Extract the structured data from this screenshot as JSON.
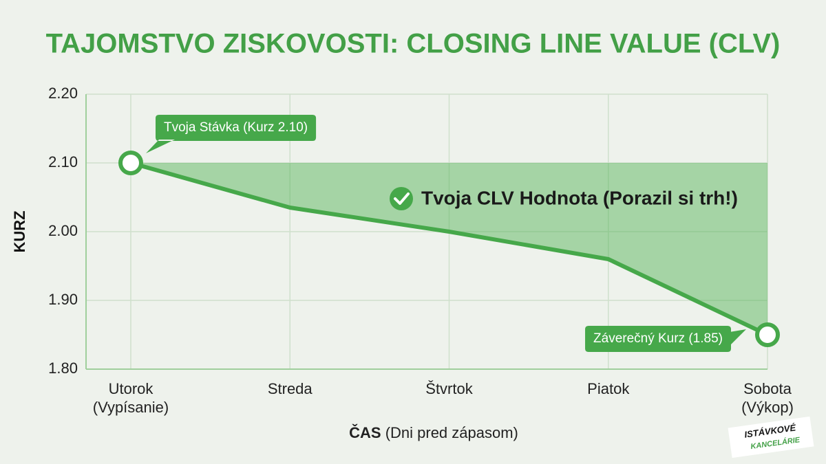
{
  "chart_data": {
    "type": "line",
    "title": "TAJOMSTVO ZISKOVOSTI: CLOSING LINE VALUE (CLV)",
    "y_label": "KURZ",
    "x_label": {
      "bold": "ČAS",
      "rest": "(Dni pred zápasom)"
    },
    "categories": [
      "Utorok",
      "Streda",
      "Štvrtok",
      "Piatok",
      "Sobota"
    ],
    "category_notes": {
      "0": "(Vypísanie)",
      "4": "(Výkop)"
    },
    "series": [
      {
        "name": "Kurz",
        "color": "#46a84a",
        "values": [
          2.1,
          2.035,
          2.0,
          1.96,
          1.85
        ]
      }
    ],
    "ylim": [
      1.8,
      2.2
    ],
    "yticks": [
      {
        "value": 1.8,
        "label": "1.80"
      },
      {
        "value": 1.9,
        "label": "1.90"
      },
      {
        "value": 2.0,
        "label": "2.00"
      },
      {
        "value": 2.1,
        "label": "2.10"
      },
      {
        "value": 2.2,
        "label": "2.20"
      }
    ],
    "grid": true,
    "annotations": {
      "start": "Tvoja Stávka (Kurz 2.10)",
      "end": "Záverečný Kurz (1.85)",
      "area": "Tvoja CLV Hodnota (Porazil si trh!)"
    },
    "watermark": [
      "ISTÁVKOVÉ",
      "KANCELÁRIE"
    ]
  }
}
